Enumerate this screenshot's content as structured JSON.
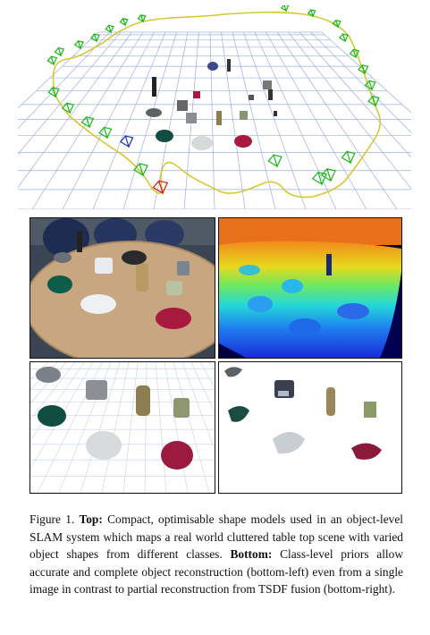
{
  "caption": {
    "figure_label": "Figure 1.",
    "top_label": "Top:",
    "top_text": "Compact, optimisable shape models used in an object-level SLAM system which maps a real world cluttered table top scene with varied object shapes from different classes.",
    "bottom_label": "Bottom:",
    "bottom_text": "Class-level priors allow accurate and complete object reconstruction (bottom-left) even from a single image in contrast to partial reconstruction from TSDF fusion (bottom-right)."
  },
  "colors": {
    "trajectory": "#d6c832",
    "camera_frustum": "#18b818",
    "current_camera": "#1a2fb0",
    "start_camera": "#d41a1a",
    "grid": "#9fb0de",
    "mug_maroon": "#a8193f",
    "bowl_teal": "#0f5a48"
  },
  "icons": [
    "camera-frustum-icon"
  ]
}
